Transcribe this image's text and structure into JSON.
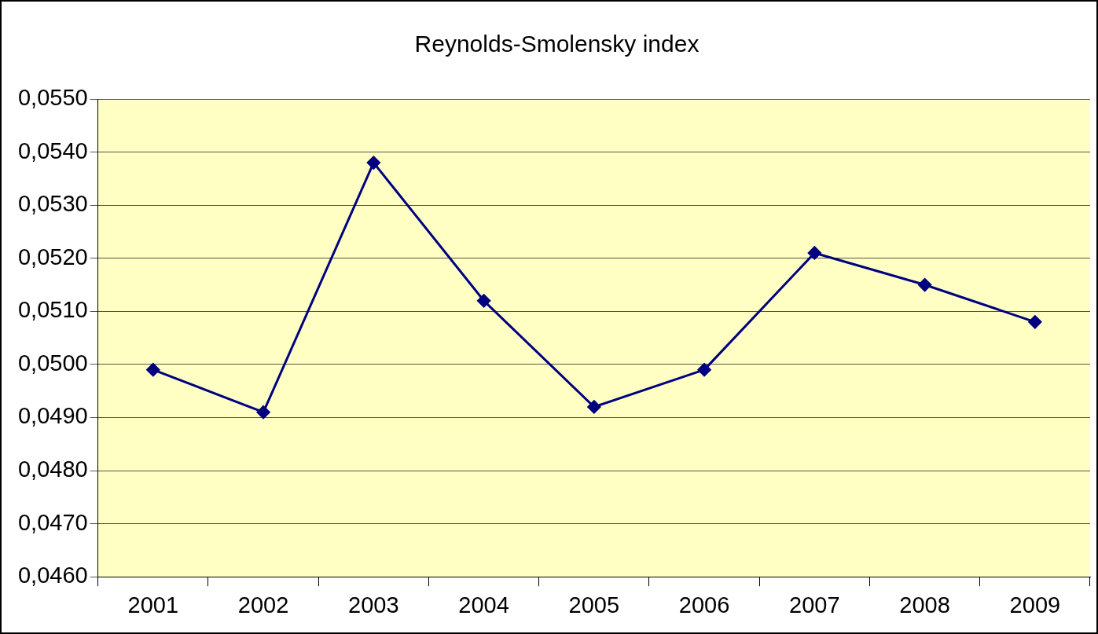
{
  "chart_data": {
    "type": "line",
    "title": "Reynolds-Smolensky index",
    "categories": [
      "2001",
      "2002",
      "2003",
      "2004",
      "2005",
      "2006",
      "2007",
      "2008",
      "2009"
    ],
    "series": [
      {
        "color": "#000080",
        "values": [
          0.0499,
          0.0491,
          0.0538,
          0.0512,
          0.0492,
          0.0499,
          0.0521,
          0.0515,
          0.0508
        ]
      }
    ],
    "ylim": [
      0.046,
      0.055
    ],
    "yticks": [
      {
        "value": 0.046,
        "label": "0,0460"
      },
      {
        "value": 0.047,
        "label": "0,0470"
      },
      {
        "value": 0.048,
        "label": "0,0480"
      },
      {
        "value": 0.049,
        "label": "0,0490"
      },
      {
        "value": 0.05,
        "label": "0,0500"
      },
      {
        "value": 0.051,
        "label": "0,0510"
      },
      {
        "value": 0.052,
        "label": "0,0520"
      },
      {
        "value": 0.053,
        "label": "0,0530"
      },
      {
        "value": 0.054,
        "label": "0,0540"
      },
      {
        "value": 0.055,
        "label": "0,0550"
      }
    ],
    "grid": "y",
    "legend": false,
    "marker": "diamond",
    "line_style": "solid"
  }
}
